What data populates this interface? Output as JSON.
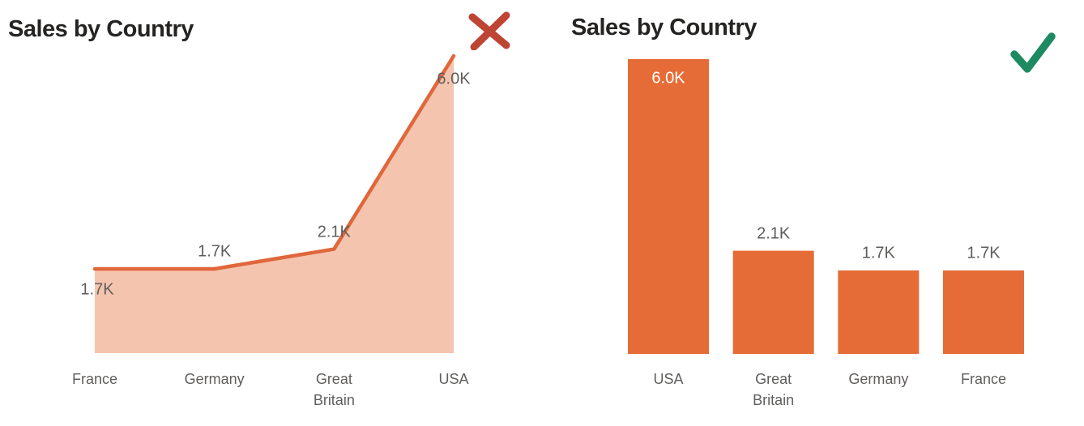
{
  "charts": [
    {
      "title": "Sales by Country",
      "verdict": {
        "icon": "x-mark",
        "meaning": "incorrect",
        "color": "#BE4434"
      }
    },
    {
      "title": "Sales by Country",
      "verdict": {
        "icon": "check-mark",
        "meaning": "correct",
        "color": "#1E8A62"
      }
    }
  ],
  "chart_data": [
    {
      "type": "area",
      "title": "Sales by Country",
      "categories": [
        "France",
        "Germany",
        "Great Britain",
        "USA"
      ],
      "values": [
        1700,
        1700,
        2100,
        6000
      ],
      "data_labels": [
        "1.7K",
        "1.7K",
        "2.1K",
        "6.0K"
      ],
      "xlabel": "",
      "ylabel": "",
      "ylim": [
        0,
        6000
      ],
      "grid": false,
      "legend": false,
      "axis_lines": false,
      "sort_order": "alphabetical by category",
      "annotation": "marked incorrect with red X"
    },
    {
      "type": "bar",
      "title": "Sales by Country",
      "categories": [
        "USA",
        "Great Britain",
        "Germany",
        "France"
      ],
      "values": [
        6000,
        2100,
        1700,
        1700
      ],
      "data_labels": [
        "6.0K",
        "2.1K",
        "1.7K",
        "1.7K"
      ],
      "xlabel": "",
      "ylabel": "",
      "ylim": [
        0,
        6000
      ],
      "grid": false,
      "legend": false,
      "axis_lines": false,
      "sort_order": "descending by value",
      "annotation": "marked correct with green check"
    }
  ],
  "colors": {
    "accent_orange": "#E66C37",
    "line_orange": "#E0673B",
    "area_fill": "#F5C4AE",
    "x_mark_red": "#BE4434",
    "check_green": "#1E8A62",
    "title_text": "#252423",
    "label_gray": "#605E5C",
    "inside_bar_label": "#FFFFFF",
    "background": "#FFFFFF"
  }
}
